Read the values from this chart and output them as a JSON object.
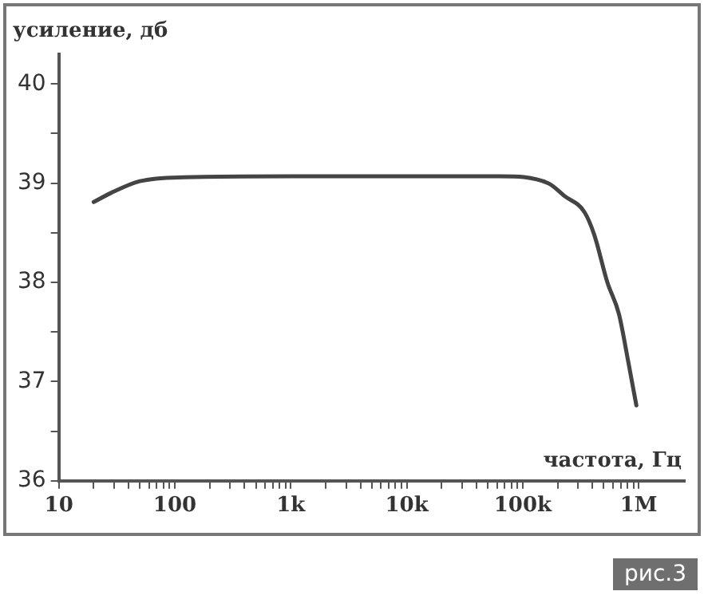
{
  "chart_data": {
    "type": "line",
    "xlabel": "частота, Гц",
    "ylabel": "усиление, дб",
    "log": "x",
    "grid": false,
    "legend": false,
    "marker": "none",
    "line_style": "solid",
    "x": [
      20,
      28,
      50,
      120,
      1000,
      10000,
      63000,
      166000,
      230000,
      340000,
      414000,
      537000,
      676000,
      813000,
      955000
    ],
    "series": [
      {
        "color": "#444444",
        "values": [
          38.81,
          38.9,
          39.02,
          39.06,
          39.07,
          39.07,
          39.07,
          39.0,
          38.87,
          38.71,
          38.48,
          38.0,
          37.68,
          37.2,
          36.76
        ]
      }
    ],
    "xlim": [
      10,
      2500000
    ],
    "ylim": [
      36,
      40.3
    ],
    "xticks": [
      {
        "value": 10,
        "label": "10"
      },
      {
        "value": 20,
        "label": null
      },
      {
        "value": 30,
        "label": null
      },
      {
        "value": 40,
        "label": null
      },
      {
        "value": 50,
        "label": null
      },
      {
        "value": 60,
        "label": null
      },
      {
        "value": 70,
        "label": null
      },
      {
        "value": 80,
        "label": null
      },
      {
        "value": 90,
        "label": null
      },
      {
        "value": 100,
        "label": "100"
      },
      {
        "value": 200,
        "label": null
      },
      {
        "value": 300,
        "label": null
      },
      {
        "value": 400,
        "label": null
      },
      {
        "value": 500,
        "label": null
      },
      {
        "value": 600,
        "label": null
      },
      {
        "value": 700,
        "label": null
      },
      {
        "value": 800,
        "label": null
      },
      {
        "value": 900,
        "label": null
      },
      {
        "value": 1000,
        "label": "1k"
      },
      {
        "value": 2000,
        "label": null
      },
      {
        "value": 3000,
        "label": null
      },
      {
        "value": 4000,
        "label": null
      },
      {
        "value": 5000,
        "label": null
      },
      {
        "value": 6000,
        "label": null
      },
      {
        "value": 7000,
        "label": null
      },
      {
        "value": 8000,
        "label": null
      },
      {
        "value": 9000,
        "label": null
      },
      {
        "value": 10000,
        "label": "10k"
      },
      {
        "value": 20000,
        "label": null
      },
      {
        "value": 30000,
        "label": null
      },
      {
        "value": 40000,
        "label": null
      },
      {
        "value": 50000,
        "label": null
      },
      {
        "value": 60000,
        "label": null
      },
      {
        "value": 70000,
        "label": null
      },
      {
        "value": 80000,
        "label": null
      },
      {
        "value": 90000,
        "label": null
      },
      {
        "value": 100000,
        "label": "100k"
      },
      {
        "value": 200000,
        "label": null
      },
      {
        "value": 300000,
        "label": null
      },
      {
        "value": 400000,
        "label": null
      },
      {
        "value": 500000,
        "label": null
      },
      {
        "value": 600000,
        "label": null
      },
      {
        "value": 700000,
        "label": null
      },
      {
        "value": 800000,
        "label": null
      },
      {
        "value": 900000,
        "label": null
      },
      {
        "value": 1000000,
        "label": "1M"
      }
    ],
    "yticks": [
      36,
      {
        "value": 36.5,
        "label": null
      },
      37,
      {
        "value": 37.5,
        "label": null
      },
      38,
      {
        "value": 38.5,
        "label": null
      },
      39,
      {
        "value": 39.5,
        "label": null
      },
      40
    ],
    "annotations": [
      "рис.3"
    ]
  }
}
